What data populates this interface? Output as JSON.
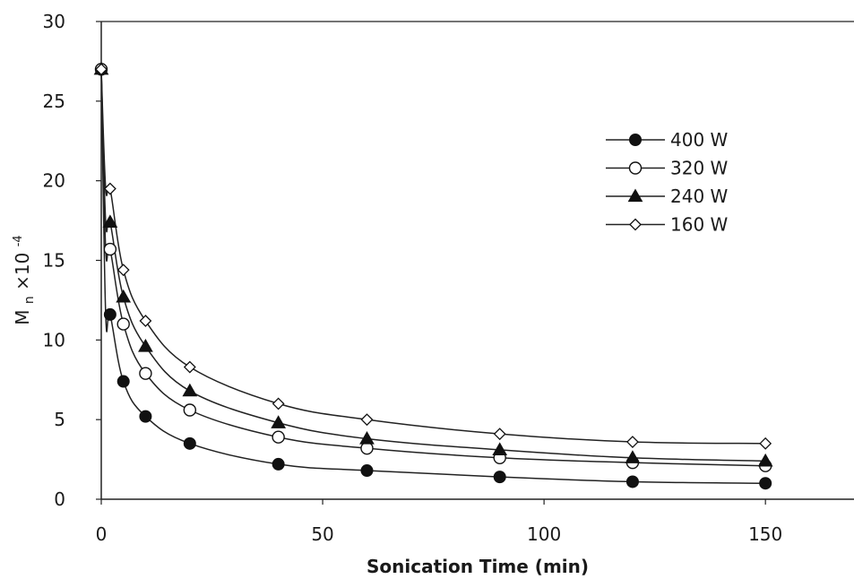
{
  "chart_data": {
    "type": "line",
    "title": "",
    "xlabel": "Sonication Time (min)",
    "ylabel": {
      "base": "M",
      "subscript": "n",
      "mid": "×10",
      "superscript": "-4"
    },
    "xlim": [
      0,
      170
    ],
    "ylim": [
      0,
      30
    ],
    "xticks": [
      "0",
      "50",
      "100",
      "150"
    ],
    "yticks": [
      "0",
      "5",
      "10",
      "15",
      "20",
      "25",
      "30"
    ],
    "grid": false,
    "legend_position": "top-right",
    "x": [
      0,
      1,
      2,
      5,
      10,
      20,
      40,
      60,
      90,
      120,
      150
    ],
    "series": [
      {
        "name": "400 W",
        "marker": "filled-circle",
        "values": [
          27.0,
          11.6,
          11.6,
          7.4,
          5.2,
          3.5,
          2.2,
          1.8,
          1.4,
          1.1,
          1.0
        ]
      },
      {
        "name": "320 W",
        "marker": "open-circle",
        "values": [
          27.0,
          15.7,
          15.7,
          11.0,
          7.9,
          5.6,
          3.9,
          3.2,
          2.6,
          2.3,
          2.1
        ]
      },
      {
        "name": "240 W",
        "marker": "filled-triangle",
        "values": [
          27.0,
          17.4,
          17.4,
          12.7,
          9.6,
          6.8,
          4.8,
          3.8,
          3.1,
          2.6,
          2.4
        ]
      },
      {
        "name": "160 W",
        "marker": "open-diamond",
        "values": [
          27.0,
          19.5,
          19.5,
          14.4,
          11.2,
          8.3,
          6.0,
          5.0,
          4.1,
          3.6,
          3.5
        ]
      }
    ]
  }
}
